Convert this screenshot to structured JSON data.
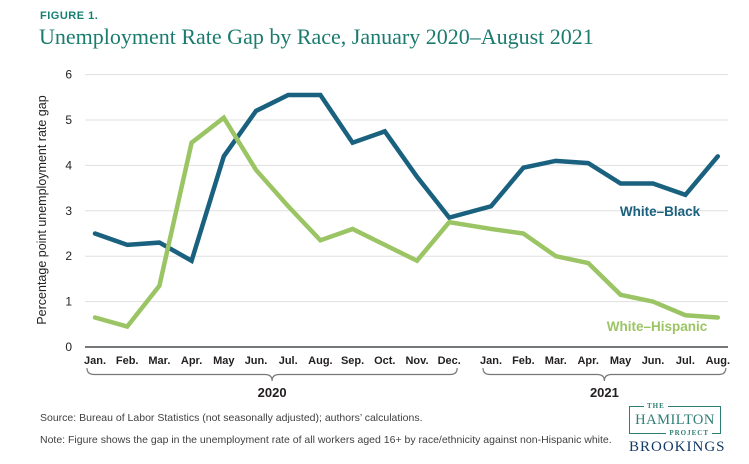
{
  "header": {
    "figure_label": "FIGURE 1.",
    "title": "Unemployment Rate Gap by Race, January 2020–August 2021"
  },
  "chart_data": {
    "type": "line",
    "title": "Unemployment Rate Gap by Race, January 2020–August 2021",
    "xlabel": "",
    "ylabel": "Percentage point unemployment rate gap",
    "ylim": [
      0,
      6
    ],
    "yticks": [
      0,
      1,
      2,
      3,
      4,
      5,
      6
    ],
    "grid": "horizontal",
    "legend_position": "inline-labels",
    "categories": [
      "Jan.",
      "Feb.",
      "Mar.",
      "Apr.",
      "May",
      "Jun.",
      "Jul.",
      "Aug.",
      "Sep.",
      "Oct.",
      "Nov.",
      "Dec.",
      "Jan.",
      "Feb.",
      "Mar.",
      "Apr.",
      "May",
      "Jun.",
      "Jul.",
      "Aug."
    ],
    "year_groups": [
      {
        "label": "2020",
        "start": 0,
        "end": 11
      },
      {
        "label": "2021",
        "start": 12,
        "end": 19
      }
    ],
    "series": [
      {
        "name": "White–Black",
        "color": "#19617E",
        "values": [
          2.5,
          2.25,
          2.3,
          1.9,
          4.2,
          5.2,
          5.55,
          5.55,
          4.5,
          4.75,
          3.75,
          2.85,
          3.1,
          3.95,
          4.1,
          4.05,
          3.6,
          3.6,
          3.35,
          4.2
        ]
      },
      {
        "name": "White–Hispanic",
        "color": "#9BC564",
        "values": [
          0.65,
          0.45,
          1.35,
          4.5,
          5.05,
          3.9,
          3.1,
          2.35,
          2.6,
          2.25,
          1.9,
          2.75,
          2.6,
          2.5,
          2.0,
          1.85,
          1.15,
          1.0,
          0.7,
          0.65
        ]
      }
    ]
  },
  "footer": {
    "source": "Source: Bureau of Labor Statistics (not seasonally adjusted); authors’ calculations.",
    "note": "Note: Figure shows the gap in the unemployment rate of all workers aged 16+ by race/ethnicity against non-Hispanic white."
  },
  "logo": {
    "the": "THE",
    "hamilton": "HAMILTON",
    "project": "PROJECT",
    "brookings": "BROOKINGS"
  },
  "colors": {
    "title_teal": "#1B7B6F",
    "axis_gray": "#75787B",
    "gridline": "#E0E0E0",
    "tick_text": "#231F20",
    "logo_teal": "#2E7D74",
    "logo_navy": "#143A66"
  }
}
